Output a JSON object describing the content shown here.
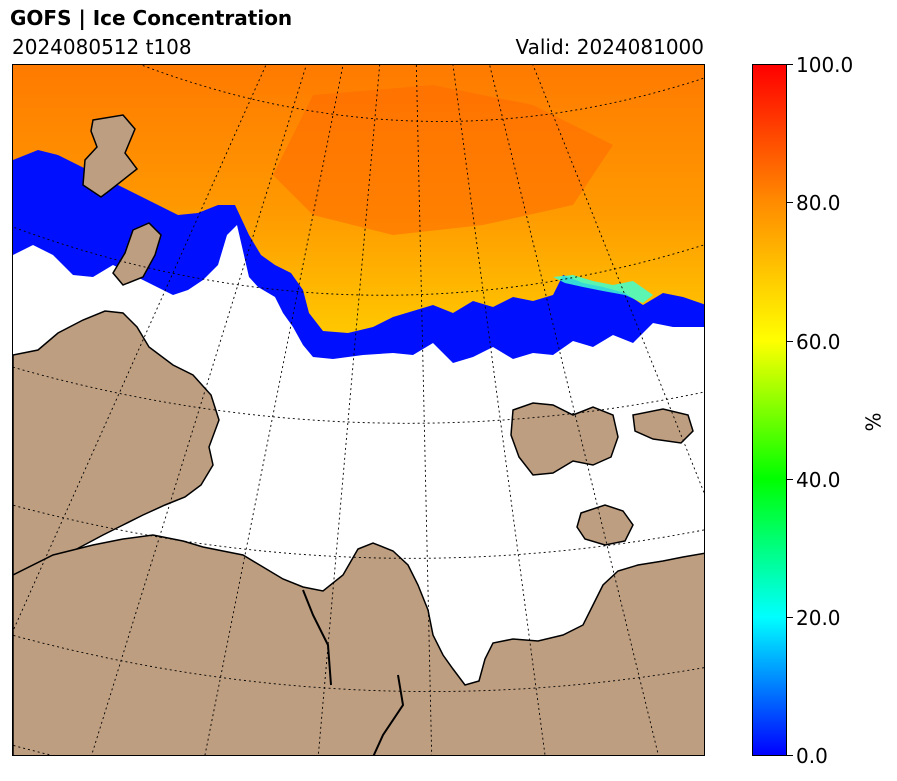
{
  "header": {
    "title": "GOFS  |  Ice Concentration",
    "run": "2024080512 t108",
    "valid": "Valid: 2024081000"
  },
  "colorbar": {
    "label": "%",
    "ticks": [
      "100.0",
      "80.0",
      "60.0",
      "40.0",
      "20.0",
      "0.0"
    ],
    "range": [
      0,
      100
    ],
    "colors": [
      "#0000ff",
      "#00ffff",
      "#00ff00",
      "#ffff00",
      "#ff8c00",
      "#ff0000"
    ]
  },
  "map": {
    "land_color": "#be9e80",
    "ocean_color": "#ffffff",
    "projection": "north polar stereographic",
    "graticule": "dotted"
  }
}
